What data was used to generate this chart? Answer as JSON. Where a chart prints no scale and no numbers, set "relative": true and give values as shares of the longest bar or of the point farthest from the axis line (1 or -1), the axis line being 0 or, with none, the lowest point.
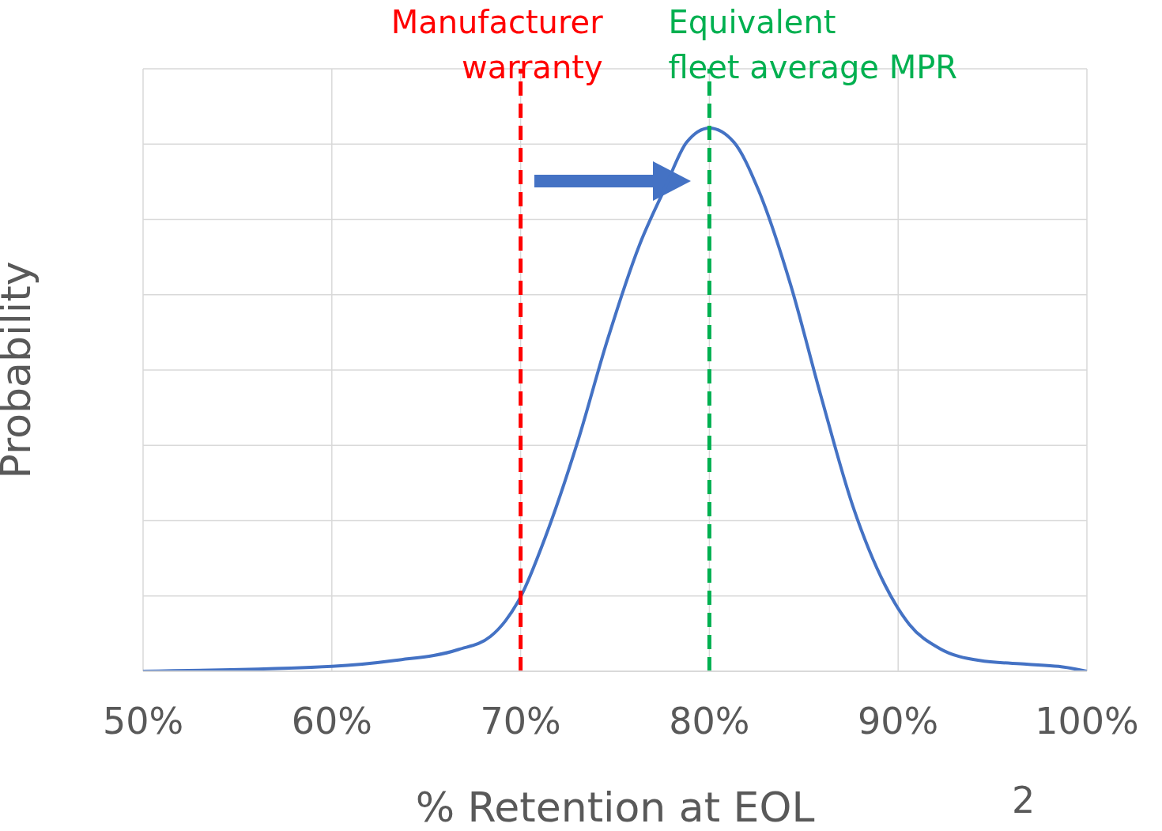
{
  "chart_data": {
    "type": "line",
    "xlabel": "% Retention at EOL",
    "ylabel": "Probability",
    "relative": true,
    "xlim": [
      50,
      100
    ],
    "xticks": [
      {
        "value": 50,
        "label": "50%"
      },
      {
        "value": 60,
        "label": "60%"
      },
      {
        "value": 70,
        "label": "70%"
      },
      {
        "value": 80,
        "label": "80%"
      },
      {
        "value": 90,
        "label": "90%"
      },
      {
        "value": 100,
        "label": "100%"
      }
    ],
    "grid": true,
    "marker": "none",
    "line_style": "solid",
    "series": [
      {
        "color": "#4472c4",
        "x": [
          50,
          60,
          63.35,
          66.7,
          68.4,
          69.2,
          70,
          71.3,
          73,
          74.6,
          76.3,
          77.6,
          78.8,
          80,
          81.3,
          82.6,
          84.3,
          85.9,
          87.6,
          89.3,
          90.6,
          92.2,
          94.3,
          96.8,
          98.5,
          100
        ],
        "values": [
          0,
          0.009,
          0.02,
          0.04,
          0.064,
          0.093,
          0.137,
          0.246,
          0.42,
          0.61,
          0.785,
          0.886,
          0.974,
          1,
          0.974,
          0.886,
          0.712,
          0.508,
          0.304,
          0.159,
          0.086,
          0.042,
          0.02,
          0.013,
          0.009,
          0
        ]
      }
    ],
    "ref_lines": [
      {
        "axis": "x",
        "value": 70,
        "label": "Manufacturer warranty",
        "color": "#ff0000",
        "line_style": "dashed"
      },
      {
        "axis": "x",
        "value": 80,
        "label": "Equivalent fleet average MPR",
        "color": "#00b050",
        "line_style": "dashed"
      }
    ],
    "annotations": [
      "2"
    ]
  }
}
